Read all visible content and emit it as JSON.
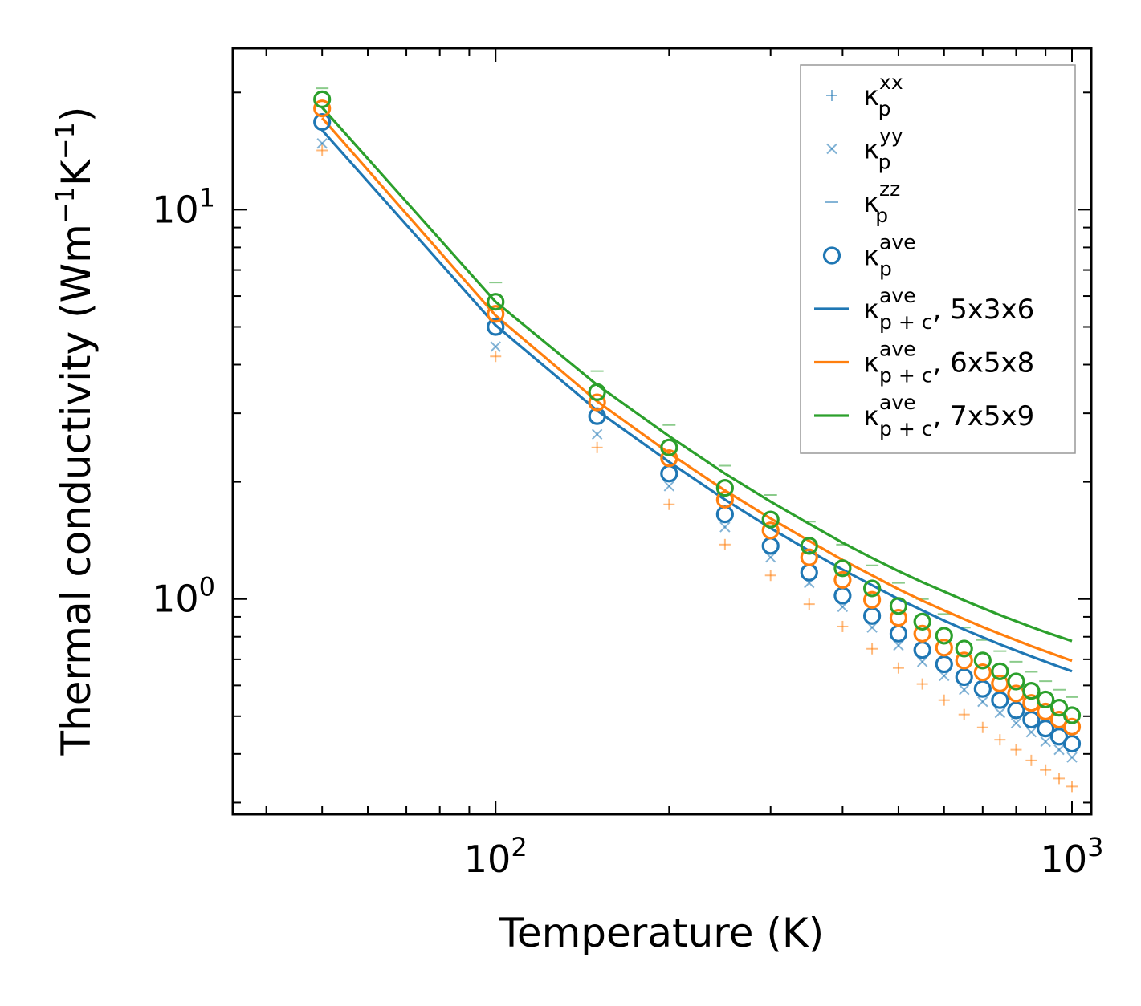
{
  "chart_data": {
    "type": "line",
    "xscale": "log",
    "yscale": "log",
    "xlim": [
      35,
      1080
    ],
    "ylim": [
      0.28,
      26
    ],
    "xlabel": "Temperature (K)",
    "ylabel": {
      "base": "Thermal conductivity (Wm",
      "exp1": "−1",
      "mid": "K",
      "exp2": "−1",
      "end": ")"
    },
    "x_ticks": [
      {
        "value": 100,
        "base": "10",
        "exp": "2"
      },
      {
        "value": 1000,
        "base": "10",
        "exp": "3"
      }
    ],
    "y_ticks": [
      {
        "value": 1,
        "base": "10",
        "exp": "0"
      },
      {
        "value": 10,
        "base": "10",
        "exp": "1"
      }
    ],
    "x": [
      50,
      100,
      150,
      200,
      250,
      300,
      350,
      400,
      450,
      500,
      550,
      600,
      650,
      700,
      750,
      800,
      850,
      900,
      950,
      1000
    ],
    "series": [
      {
        "name": "kappa_p_xx",
        "kind": "marker",
        "marker": "plus",
        "color": "#ff7f0e",
        "alpha": 0.55,
        "values": [
          14.2,
          4.2,
          2.45,
          1.75,
          1.38,
          1.15,
          0.97,
          0.85,
          0.745,
          0.665,
          0.605,
          0.55,
          0.505,
          0.468,
          0.435,
          0.41,
          0.385,
          0.364,
          0.346,
          0.33
        ]
      },
      {
        "name": "kappa_p_yy",
        "kind": "marker",
        "marker": "x",
        "color": "#1f77b4",
        "alpha": 0.55,
        "values": [
          14.8,
          4.45,
          2.65,
          1.95,
          1.53,
          1.28,
          1.1,
          0.955,
          0.845,
          0.76,
          0.69,
          0.635,
          0.585,
          0.545,
          0.51,
          0.48,
          0.455,
          0.43,
          0.41,
          0.392
        ]
      },
      {
        "name": "kappa_p_zz",
        "kind": "marker",
        "marker": "dash",
        "color": "#2ca02c",
        "alpha": 0.55,
        "values": [
          20.5,
          6.5,
          3.85,
          2.8,
          2.2,
          1.85,
          1.58,
          1.38,
          1.22,
          1.1,
          1.0,
          0.915,
          0.845,
          0.785,
          0.735,
          0.69,
          0.65,
          0.615,
          0.585,
          0.56
        ]
      },
      {
        "name": "kappa_p_ave 5x3x6",
        "kind": "circle",
        "color": "#1f77b4",
        "values": [
          16.8,
          5.0,
          2.95,
          2.1,
          1.65,
          1.37,
          1.17,
          1.02,
          0.905,
          0.815,
          0.74,
          0.68,
          0.63,
          0.588,
          0.55,
          0.518,
          0.49,
          0.465,
          0.443,
          0.425
        ]
      },
      {
        "name": "kappa_p_ave 6x5x8",
        "kind": "circle",
        "color": "#ff7f0e",
        "values": [
          18.2,
          5.4,
          3.2,
          2.3,
          1.8,
          1.5,
          1.28,
          1.12,
          0.995,
          0.895,
          0.815,
          0.75,
          0.695,
          0.648,
          0.607,
          0.572,
          0.541,
          0.514,
          0.49,
          0.47
        ]
      },
      {
        "name": "kappa_p_ave 7x5x9",
        "kind": "circle",
        "color": "#2ca02c",
        "values": [
          19.2,
          5.8,
          3.4,
          2.45,
          1.93,
          1.6,
          1.37,
          1.2,
          1.065,
          0.96,
          0.875,
          0.805,
          0.746,
          0.695,
          0.652,
          0.614,
          0.581,
          0.552,
          0.526,
          0.503
        ]
      },
      {
        "name": "kappa_p+c_ave 5x3x6",
        "kind": "line",
        "color": "#1f77b4",
        "values": [
          16.0,
          5.05,
          3.05,
          2.25,
          1.8,
          1.52,
          1.33,
          1.19,
          1.085,
          1.0,
          0.935,
          0.88,
          0.835,
          0.798,
          0.765,
          0.737,
          0.712,
          0.69,
          0.67,
          0.652
        ]
      },
      {
        "name": "kappa_p+c_ave 6x5x8",
        "kind": "line",
        "color": "#ff7f0e",
        "values": [
          17.2,
          5.35,
          3.22,
          2.37,
          1.9,
          1.61,
          1.41,
          1.26,
          1.15,
          1.06,
          0.99,
          0.935,
          0.888,
          0.848,
          0.814,
          0.784,
          0.757,
          0.734,
          0.713,
          0.694
        ]
      },
      {
        "name": "kappa_p+c_ave 7x5x9",
        "kind": "line",
        "color": "#2ca02c",
        "values": [
          18.3,
          5.8,
          3.55,
          2.62,
          2.1,
          1.78,
          1.56,
          1.395,
          1.275,
          1.18,
          1.105,
          1.045,
          0.992,
          0.948,
          0.91,
          0.877,
          0.848,
          0.822,
          0.8,
          0.78
        ]
      }
    ],
    "legend": {
      "position": "top-right",
      "entries": [
        {
          "symbol": "plus",
          "color": "#1f77b4",
          "alpha": 0.55,
          "label": "κ",
          "sub": "p",
          "sup": "xx",
          "suffix": ""
        },
        {
          "symbol": "x",
          "color": "#1f77b4",
          "alpha": 0.55,
          "label": "κ",
          "sub": "p",
          "sup": "yy",
          "suffix": ""
        },
        {
          "symbol": "dash",
          "color": "#1f77b4",
          "alpha": 0.55,
          "label": "κ",
          "sub": "p",
          "sup": "zz",
          "suffix": ""
        },
        {
          "symbol": "circle",
          "color": "#1f77b4",
          "alpha": 1,
          "label": "κ",
          "sub": "p",
          "sup": "ave",
          "suffix": ""
        },
        {
          "symbol": "line",
          "color": "#1f77b4",
          "alpha": 1,
          "label": "κ",
          "sub": "p + c",
          "sup": "ave",
          "suffix": ", 5x3x6"
        },
        {
          "symbol": "line",
          "color": "#ff7f0e",
          "alpha": 1,
          "label": "κ",
          "sub": "p + c",
          "sup": "ave",
          "suffix": ", 6x5x8"
        },
        {
          "symbol": "line",
          "color": "#2ca02c",
          "alpha": 1,
          "label": "κ",
          "sub": "p + c",
          "sup": "ave",
          "suffix": ", 7x5x9"
        }
      ]
    }
  }
}
